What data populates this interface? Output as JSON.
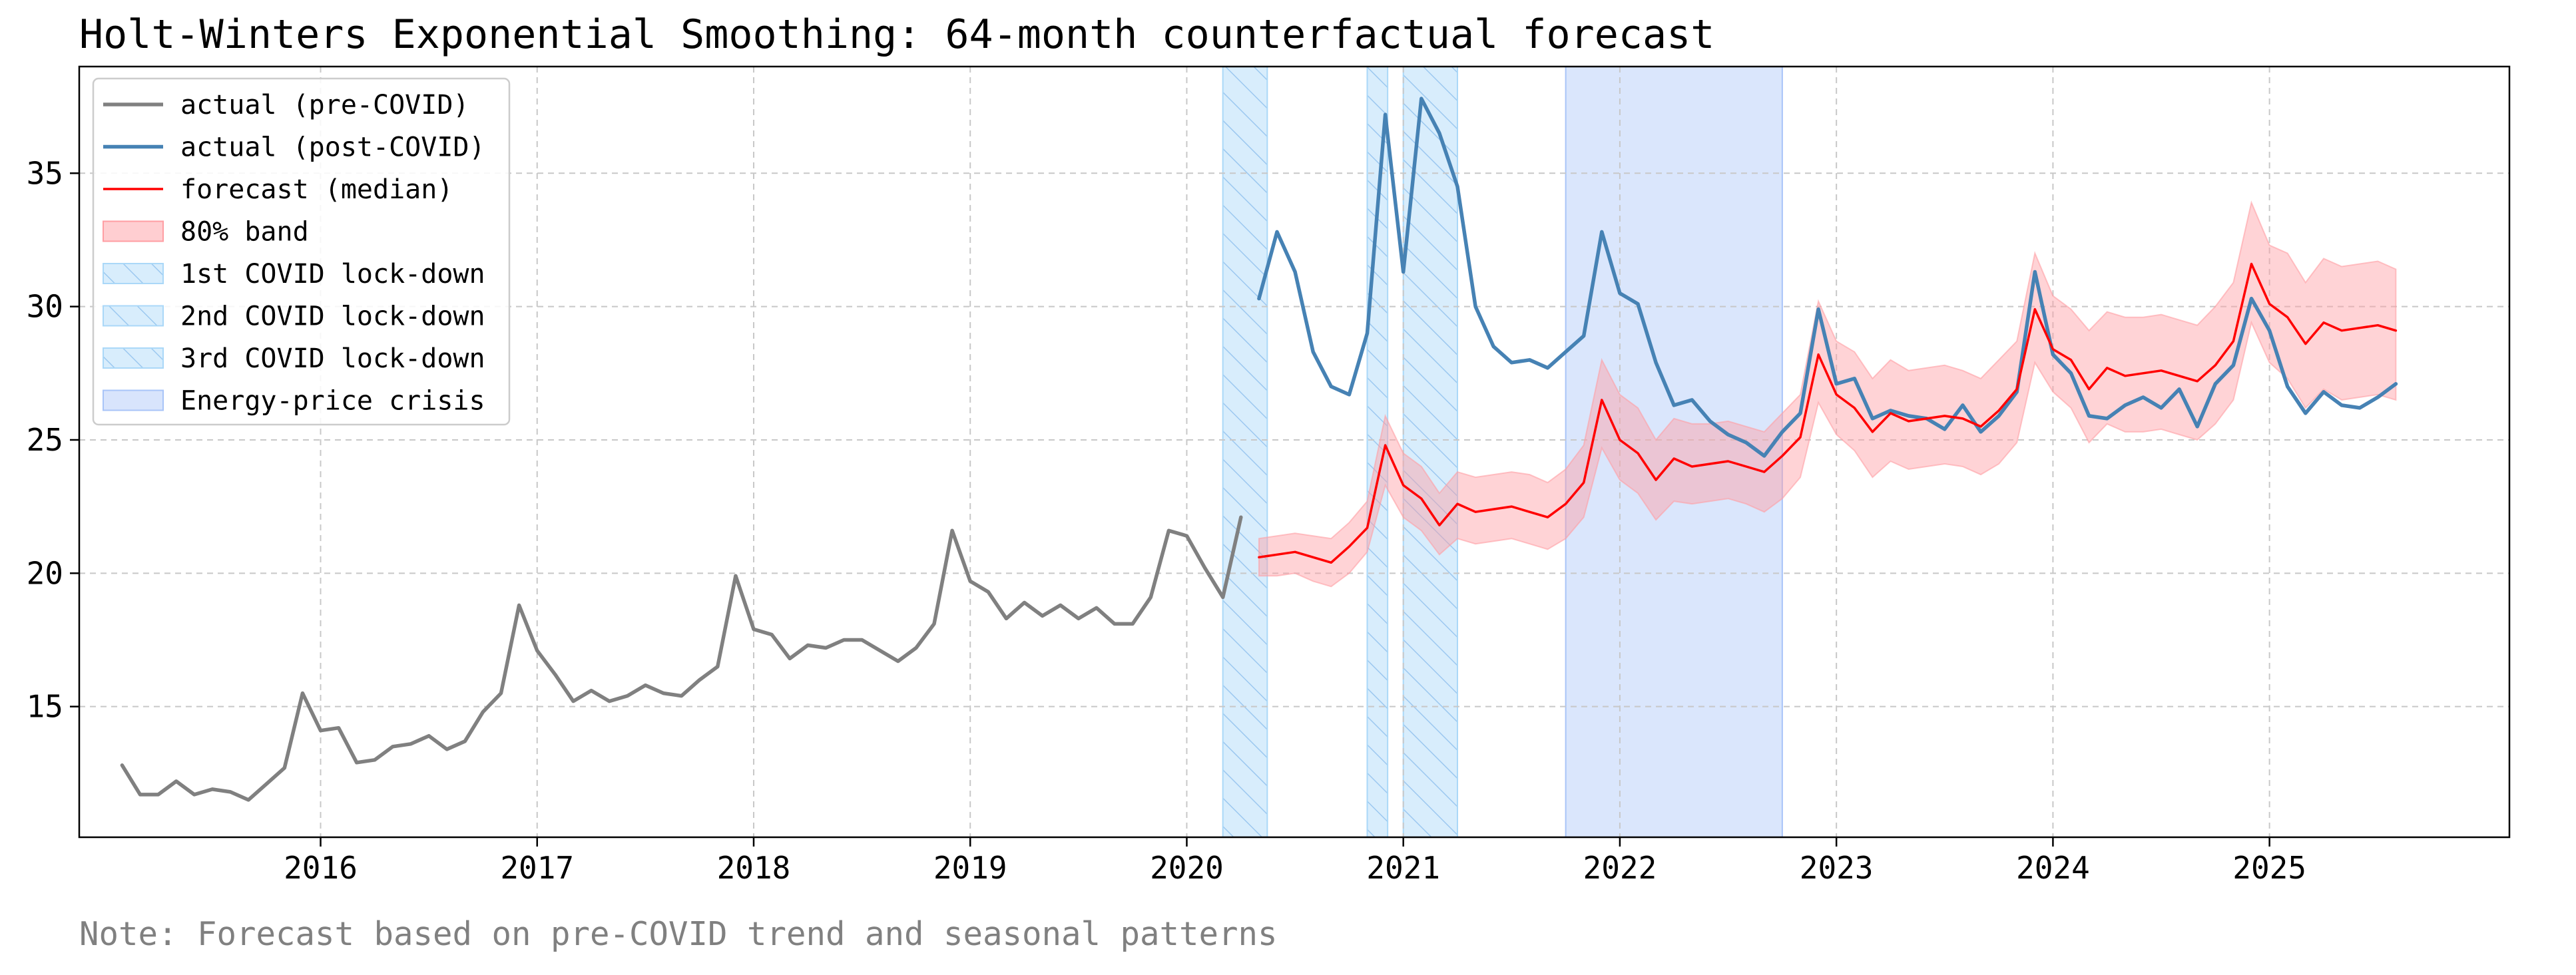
{
  "chart_data": {
    "type": "line",
    "title": "Holt-Winters Exponential Smoothing: 64-month counterfactual forecast",
    "note": "Note: Forecast based on pre-COVID trend and seasonal patterns",
    "xlabel": "",
    "ylabel": "",
    "xlim": [
      "2014-11-20",
      "2026-02-10"
    ],
    "ylim": [
      10.1,
      39.0
    ],
    "grid": true,
    "legend_position": "top-left",
    "x_ticks": [
      "2016",
      "2017",
      "2018",
      "2019",
      "2020",
      "2021",
      "2022",
      "2023",
      "2024",
      "2025"
    ],
    "y_ticks": [
      "15",
      "20",
      "25",
      "30",
      "35"
    ],
    "colors": {
      "pre_covid": "#808080",
      "post_covid": "#4682b4",
      "forecast": "#ff0000",
      "band": "#ff9ea3",
      "lockdown": "#aad8f8",
      "lockdown_hatch": "#9cc8f0",
      "crisis": "#a8c4f8",
      "grid": "#c8c8c8"
    },
    "legend": [
      {
        "label": "actual (pre-COVID)",
        "kind": "line",
        "color": "#808080"
      },
      {
        "label": "actual (post-COVID)",
        "kind": "line",
        "color": "#4682b4"
      },
      {
        "label": "forecast (median)",
        "kind": "line",
        "color": "#ff0000"
      },
      {
        "label": "80% band",
        "kind": "band",
        "color": "#ff9ea3"
      },
      {
        "label": "1st COVID lock-down",
        "kind": "hatch",
        "color": "#aad8f8"
      },
      {
        "label": "2nd COVID lock-down",
        "kind": "hatch",
        "color": "#aad8f8"
      },
      {
        "label": "3rd COVID lock-down",
        "kind": "hatch",
        "color": "#aad8f8"
      },
      {
        "label": "Energy-price crisis",
        "kind": "shade",
        "color": "#a8c4f8"
      }
    ],
    "shaded_periods": [
      {
        "label": "1st COVID lock-down",
        "start": "2020-03-01",
        "end": "2020-05-15",
        "style": "hatch"
      },
      {
        "label": "2nd COVID lock-down",
        "start": "2020-11-01",
        "end": "2020-12-05",
        "style": "hatch"
      },
      {
        "label": "3rd COVID lock-down",
        "start": "2021-01-01",
        "end": "2021-04-01",
        "style": "hatch"
      },
      {
        "label": "Energy-price crisis",
        "start": "2021-10-01",
        "end": "2022-10-01",
        "style": "shade"
      }
    ],
    "series": [
      {
        "name": "actual (pre-COVID)",
        "start": "2015-02",
        "values": [
          12.8,
          11.7,
          11.7,
          12.2,
          11.7,
          11.9,
          11.8,
          11.5,
          12.1,
          12.7,
          15.5,
          14.1,
          14.2,
          12.9,
          13.0,
          13.5,
          13.6,
          13.9,
          13.4,
          13.7,
          14.8,
          15.5,
          18.8,
          17.1,
          16.2,
          15.2,
          15.6,
          15.2,
          15.4,
          15.8,
          15.5,
          15.4,
          16.0,
          16.5,
          19.9,
          17.9,
          17.7,
          16.8,
          17.3,
          17.2,
          17.5,
          17.5,
          17.1,
          16.7,
          17.2,
          18.1,
          21.6,
          19.7,
          19.3,
          18.3,
          18.9,
          18.4,
          18.8,
          18.3,
          18.7,
          18.1,
          18.1,
          19.1,
          21.6,
          21.4,
          20.2,
          19.1,
          22.1
        ]
      },
      {
        "name": "actual (post-COVID)",
        "start": "2020-05",
        "values": [
          30.3,
          32.8,
          31.3,
          28.3,
          27.0,
          26.7,
          29.0,
          37.2,
          31.3,
          37.8,
          36.5,
          34.5,
          30.0,
          28.5,
          27.9,
          28.0,
          27.7,
          28.3,
          28.9,
          32.8,
          30.5,
          30.1,
          27.9,
          26.3,
          26.5,
          25.7,
          25.2,
          24.9,
          24.4,
          25.3,
          26.0,
          29.9,
          27.1,
          27.3,
          25.8,
          26.1,
          25.9,
          25.8,
          25.4,
          26.3,
          25.3,
          25.9,
          26.8,
          31.3,
          28.2,
          27.5,
          25.9,
          25.8,
          26.3,
          26.6,
          26.2,
          26.9,
          25.5,
          27.1,
          27.8,
          30.3,
          29.1,
          27.0,
          26.0,
          26.8,
          26.3,
          26.2,
          26.6,
          27.1
        ]
      },
      {
        "name": "forecast (median)",
        "start": "2020-05",
        "values": [
          20.6,
          20.7,
          20.8,
          20.6,
          20.4,
          21.0,
          21.7,
          24.8,
          23.3,
          22.8,
          21.8,
          22.6,
          22.3,
          22.4,
          22.5,
          22.3,
          22.1,
          22.6,
          23.4,
          26.5,
          25.0,
          24.5,
          23.5,
          24.3,
          24.0,
          24.1,
          24.2,
          24.0,
          23.8,
          24.4,
          25.1,
          28.2,
          26.7,
          26.2,
          25.3,
          26.0,
          25.7,
          25.8,
          25.9,
          25.8,
          25.5,
          26.1,
          26.9,
          29.9,
          28.4,
          28.0,
          26.9,
          27.7,
          27.4,
          27.5,
          27.6,
          27.4,
          27.2,
          27.8,
          28.7,
          31.6,
          30.1,
          29.6,
          28.6,
          29.4,
          29.1,
          29.2,
          29.3,
          29.1
        ]
      }
    ],
    "band_80": {
      "start": "2020-05",
      "lower": [
        19.9,
        19.9,
        20.0,
        19.7,
        19.5,
        20.0,
        20.8,
        23.3,
        22.1,
        21.6,
        20.7,
        21.3,
        21.1,
        21.2,
        21.3,
        21.1,
        20.9,
        21.3,
        22.1,
        24.7,
        23.5,
        23.0,
        22.0,
        22.7,
        22.6,
        22.7,
        22.8,
        22.6,
        22.3,
        22.8,
        23.6,
        26.4,
        25.2,
        24.6,
        23.6,
        24.2,
        23.9,
        24.0,
        24.1,
        24.0,
        23.7,
        24.1,
        24.9,
        27.9,
        26.8,
        26.2,
        24.9,
        25.6,
        25.3,
        25.3,
        25.4,
        25.2,
        25.0,
        25.6,
        26.5,
        29.4,
        27.9,
        27.3,
        26.2,
        26.9,
        26.5,
        26.6,
        26.7,
        26.5
      ],
      "upper": [
        21.3,
        21.4,
        21.5,
        21.4,
        21.3,
        21.9,
        22.7,
        25.9,
        24.5,
        24.0,
        23.0,
        23.8,
        23.6,
        23.7,
        23.8,
        23.7,
        23.4,
        23.9,
        24.8,
        28.0,
        26.7,
        26.2,
        25.0,
        25.8,
        25.6,
        25.6,
        25.7,
        25.5,
        25.3,
        26.0,
        26.7,
        30.2,
        28.7,
        28.3,
        27.3,
        28.0,
        27.6,
        27.7,
        27.8,
        27.6,
        27.3,
        28.0,
        28.7,
        32.0,
        30.4,
        29.9,
        29.1,
        29.8,
        29.6,
        29.6,
        29.7,
        29.5,
        29.3,
        30.0,
        30.9,
        33.9,
        32.3,
        32.0,
        30.9,
        31.8,
        31.5,
        31.6,
        31.7,
        31.4
      ]
    }
  }
}
